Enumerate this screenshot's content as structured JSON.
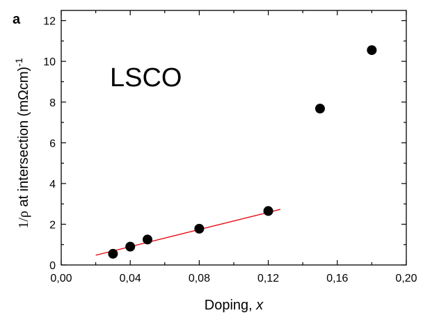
{
  "chart_data": {
    "type": "scatter",
    "panel_label": "a",
    "annotation": "LSCO",
    "xlabel_prefix": "Doping, ",
    "xlabel_var": "x",
    "ylabel_sym": "1/ρ",
    "ylabel_mid": " at intersection (mΩcm)",
    "ylabel_sup": "-1",
    "xlim": [
      0,
      0.2
    ],
    "ylim": [
      0,
      12.5
    ],
    "xticks": [
      0,
      0.04,
      0.08,
      0.12,
      0.16,
      0.2
    ],
    "xtick_labels": [
      "0,00",
      "0,04",
      "0,08",
      "0,12",
      "0,16",
      "0,20"
    ],
    "yticks": [
      0,
      2,
      4,
      6,
      8,
      10,
      12
    ],
    "ytick_labels": [
      "0",
      "2",
      "4",
      "6",
      "8",
      "10",
      "12"
    ],
    "points": [
      {
        "x": 0.03,
        "y": 0.55
      },
      {
        "x": 0.04,
        "y": 0.9
      },
      {
        "x": 0.05,
        "y": 1.25
      },
      {
        "x": 0.08,
        "y": 1.78
      },
      {
        "x": 0.12,
        "y": 2.65
      },
      {
        "x": 0.15,
        "y": 7.68
      },
      {
        "x": 0.18,
        "y": 10.55
      }
    ],
    "fit_line": {
      "x": [
        0.02,
        0.127
      ],
      "y": [
        0.48,
        2.73
      ],
      "color": "#e8000b"
    },
    "marker_color": "#000000",
    "grid": false,
    "legend": "none"
  }
}
